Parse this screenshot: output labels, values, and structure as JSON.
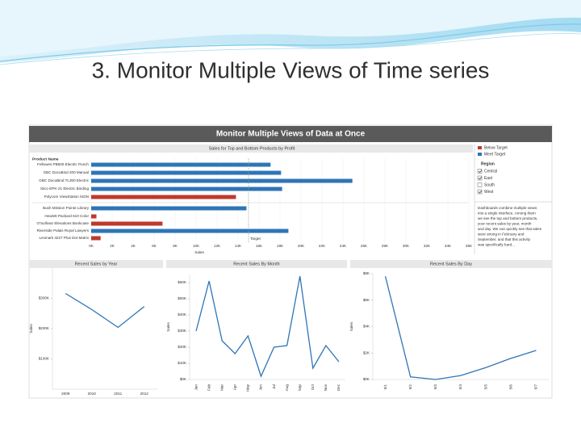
{
  "slide_title": "3. Monitor Multiple Views of Time series",
  "dashboard": {
    "title": "Monitor Multiple Views of Data at Once",
    "region_title": "Region",
    "regions": [
      {
        "name": "Central",
        "checked": true
      },
      {
        "name": "East",
        "checked": true
      },
      {
        "name": "South",
        "checked": false
      },
      {
        "name": "West",
        "checked": true
      }
    ],
    "description": [
      "Dashboards combine multiple views",
      "into a single interface. Among them",
      "we see the top and bottom products,",
      "your recent sales by year, month",
      "and day. We can quickly see that sales",
      "were strong in February and",
      "September, and that this activity",
      "was specifically hard..."
    ]
  },
  "chart_data": [
    {
      "type": "hbar",
      "title": "Sales for Top and Bottom Products by Profit",
      "category_header": "Product Name",
      "categories": [
        "Fellowes PB500 Electric Punch",
        "GBC DocuBind 200 Manual",
        "GBC DocuBind TL300 Electric",
        "Ibico EPK-21 Electric Binding",
        "Polycom ViewStation ISDN",
        "Bush Mission Pointe Library",
        "Hewlett Packard 610 Color",
        "O'Sullivan Elevations Bookcase",
        "Riverside Palais Royal Lawyers",
        "Lexmark 4227 Plus Dot Matrix"
      ],
      "series": [
        {
          "name": "Below Target",
          "color": "#c0392b",
          "values": [
            null,
            null,
            null,
            null,
            13800,
            null,
            500,
            6800,
            null,
            900
          ]
        },
        {
          "name": "Meet Target",
          "color": "#2e75b6",
          "values": [
            17100,
            18100,
            24900,
            18200,
            null,
            14800,
            null,
            null,
            18800,
            null
          ]
        }
      ],
      "target": 15000,
      "target_label": "Target",
      "x_label": "Sales",
      "xlim": [
        0,
        36000
      ],
      "xticks": [
        {
          "value": 0,
          "label": "0K"
        },
        {
          "value": 2000,
          "label": "2K"
        },
        {
          "value": 4000,
          "label": "4K"
        },
        {
          "value": 6000,
          "label": "6K"
        },
        {
          "value": 8000,
          "label": "8K"
        },
        {
          "value": 10000,
          "label": "10K"
        },
        {
          "value": 12000,
          "label": "12K"
        },
        {
          "value": 14000,
          "label": "14K"
        },
        {
          "value": 16000,
          "label": "16K"
        },
        {
          "value": 18000,
          "label": "18K"
        },
        {
          "value": 20000,
          "label": "20K"
        },
        {
          "value": 22000,
          "label": "22K"
        },
        {
          "value": 24000,
          "label": "24K"
        },
        {
          "value": 26000,
          "label": "26K"
        },
        {
          "value": 28000,
          "label": "28K"
        },
        {
          "value": 30000,
          "label": "30K"
        },
        {
          "value": 32000,
          "label": "32K"
        },
        {
          "value": 34000,
          "label": "34K"
        },
        {
          "value": 36000,
          "label": "36K"
        }
      ],
      "grid": true
    },
    {
      "type": "line",
      "title": "Recent Sales by Year",
      "y_label": "Sales",
      "color": "#2e75b6",
      "categories": [
        "2009",
        "2010",
        "2011",
        "2012"
      ],
      "values": [
        316000,
        263000,
        204000,
        273000
      ],
      "ylim": [
        0,
        400000
      ],
      "yticks": [
        {
          "value": 100000,
          "label": "$100K"
        },
        {
          "value": 200000,
          "label": "$200K"
        },
        {
          "value": 300000,
          "label": "$300K"
        }
      ],
      "grid": false
    },
    {
      "type": "line",
      "title": "Recent Sales By Month",
      "y_label": "Sales",
      "color": "#2e75b6",
      "categories": [
        "Jan",
        "Feb",
        "Mar",
        "Apr",
        "May",
        "Jun",
        "Jul",
        "Aug",
        "Sep",
        "Oct",
        "Nov",
        "Dec"
      ],
      "values": [
        30000,
        61000,
        24000,
        16000,
        27000,
        2000,
        20000,
        21000,
        64000,
        7000,
        21000,
        11000
      ],
      "ylim": [
        0,
        65000
      ],
      "yticks": [
        {
          "value": 0,
          "label": "$0K"
        },
        {
          "value": 10000,
          "label": "$10K"
        },
        {
          "value": 20000,
          "label": "$20K"
        },
        {
          "value": 30000,
          "label": "$30K"
        },
        {
          "value": 40000,
          "label": "$40K"
        },
        {
          "value": 50000,
          "label": "$50K"
        },
        {
          "value": 60000,
          "label": "$60K"
        }
      ],
      "grid": false
    },
    {
      "type": "line",
      "title": "Recent Sales By Day",
      "y_label": "Sales",
      "color": "#2e75b6",
      "categories": [
        "5/1",
        "5/2",
        "5/3",
        "5/4",
        "5/5",
        "5/6",
        "5/7"
      ],
      "values": [
        7800,
        200,
        0,
        300,
        900,
        1600,
        2200
      ],
      "ylim": [
        0,
        8000
      ],
      "yticks": [
        {
          "value": 0,
          "label": "$0K"
        },
        {
          "value": 2000,
          "label": "$2K"
        },
        {
          "value": 4000,
          "label": "$4K"
        },
        {
          "value": 6000,
          "label": "$6K"
        },
        {
          "value": 8000,
          "label": "$8K"
        }
      ],
      "grid": false
    }
  ]
}
